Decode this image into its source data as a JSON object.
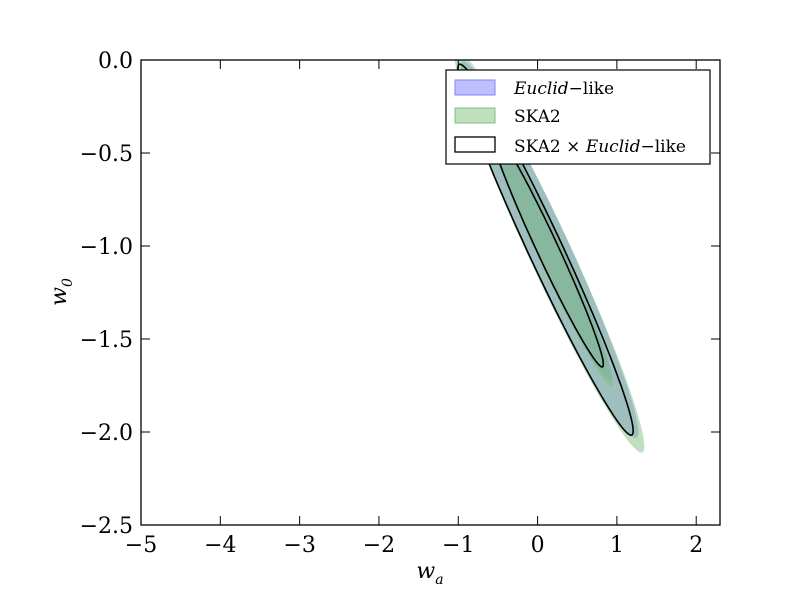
{
  "chart_data": {
    "type": "contour",
    "xlabel": "w",
    "xlabel_sub": "a",
    "ylabel": "w",
    "ylabel_sub": "0",
    "xlim": [
      -5,
      2.3
    ],
    "ylim": [
      -2.5,
      0.0
    ],
    "xticks": [
      -5,
      -4,
      -3,
      -2,
      -1,
      0,
      1,
      2
    ],
    "yticks": [
      0.0,
      -0.5,
      -1.0,
      -1.5,
      -2.0,
      -2.5
    ],
    "xtick_labels": [
      "−5",
      "−4",
      "−3",
      "−2",
      "−1",
      "0",
      "1",
      "2"
    ],
    "ytick_labels": [
      "0.0",
      "−0.5",
      "−1.0",
      "−1.5",
      "−2.0",
      "−2.5"
    ],
    "grid": false,
    "legend_position": "top-right",
    "series": [
      {
        "legend": {
          "italic": "Euclid",
          "rest": "−like"
        },
        "style": "filled",
        "fill": "#8080ff",
        "opacity": 0.5,
        "contours": [
          {
            "level": "inner",
            "center": [
              0.15,
              -1.02
            ],
            "semi_major": 1.05,
            "semi_minor": 0.12,
            "angle": -42
          },
          {
            "level": "outer",
            "center": [
              0.15,
              -1.02
            ],
            "semi_major": 1.5,
            "semi_minor": 0.19,
            "angle": -42
          }
        ]
      },
      {
        "legend": {
          "italic": "",
          "rest": "SKA2"
        },
        "style": "filled",
        "fill": "#7fbf7f",
        "opacity": 0.5,
        "contours": [
          {
            "level": "inner",
            "center": [
              0.15,
              -1.03
            ],
            "semi_major": 1.08,
            "semi_minor": 0.12,
            "angle": -42
          },
          {
            "level": "outer",
            "center": [
              0.15,
              -1.03
            ],
            "semi_major": 1.6,
            "semi_minor": 0.2,
            "angle": -42
          }
        ]
      },
      {
        "legend": {
          "prefix": "SKA2 × ",
          "italic": "Euclid",
          "rest": "−like"
        },
        "style": "outline",
        "stroke": "#000000",
        "contours": [
          {
            "level": "inner",
            "center": [
              0.12,
              -1.01
            ],
            "semi_major": 0.95,
            "semi_minor": 0.1,
            "angle": -42
          },
          {
            "level": "outer",
            "center": [
              0.1,
              -1.02
            ],
            "semi_major": 1.48,
            "semi_minor": 0.16,
            "angle": -42
          }
        ]
      }
    ]
  }
}
